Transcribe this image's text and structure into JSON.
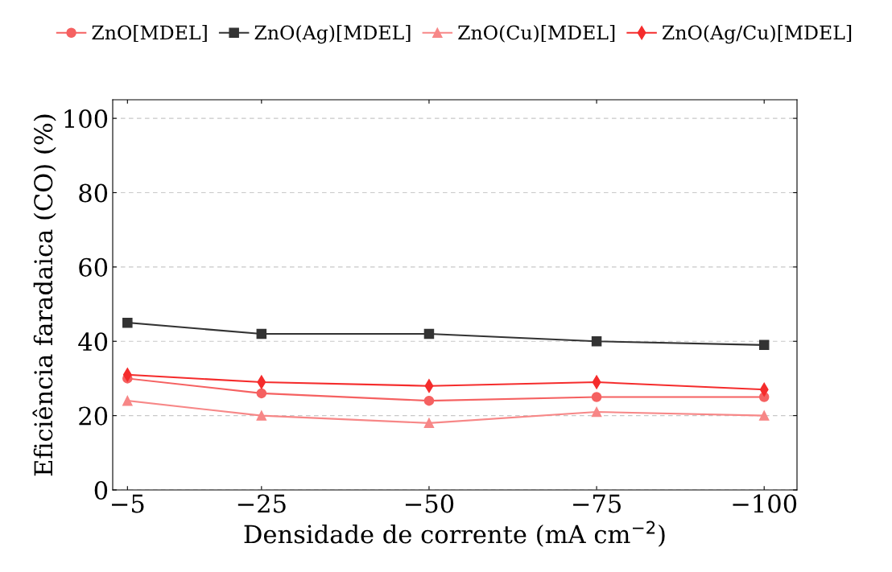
{
  "chart_data": {
    "type": "line",
    "xlabel": "Densidade de corrente (mA cm$^{−2}$)",
    "ylabel": "Eficiência faradaica (CO) (%)",
    "x": [
      -5,
      -25,
      -50,
      -75,
      -100
    ],
    "series": [
      {
        "name": "ZnO[MDEL]",
        "color": "#f56161",
        "marker": "circle",
        "values": [
          30,
          26,
          24,
          25,
          25
        ]
      },
      {
        "name": "ZnO(Ag)[MDEL]",
        "color": "#333333",
        "marker": "square",
        "values": [
          45,
          42,
          42,
          40,
          39
        ]
      },
      {
        "name": "ZnO(Cu)[MDEL]",
        "color": "#f78787",
        "marker": "triangle",
        "values": [
          24,
          20,
          18,
          21,
          20
        ]
      },
      {
        "name": "ZnO(Ag/Cu)[MDEL]",
        "color": "#f52c2c",
        "marker": "diamond",
        "values": [
          31,
          29,
          28,
          29,
          27
        ]
      }
    ],
    "xlim": [
      -2.8,
      -104.9
    ],
    "xticks": [
      {
        "value": -5,
        "label": "−5"
      },
      {
        "value": -25,
        "label": "−25"
      },
      {
        "value": -50,
        "label": "−50"
      },
      {
        "value": -75,
        "label": "−75"
      },
      {
        "value": -100,
        "label": "−100"
      }
    ],
    "ylim": [
      0,
      105
    ],
    "yticks": [
      0,
      20,
      40,
      60,
      80,
      100
    ],
    "grid": "y",
    "legend": "top",
    "line_style": "solid"
  }
}
